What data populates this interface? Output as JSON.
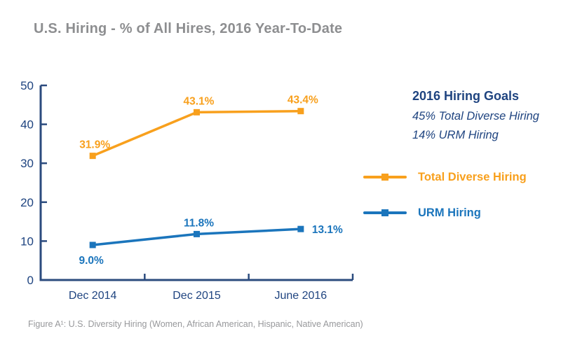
{
  "title": "U.S. Hiring - % of All Hires, 2016 Year-To-Date",
  "goals": {
    "heading": "2016 Hiring Goals",
    "lines": [
      "45% Total Diverse Hiring",
      "14% URM Hiring"
    ]
  },
  "legend": [
    {
      "label": "Total Diverse Hiring",
      "color": "#F8A01D"
    },
    {
      "label": "URM Hiring",
      "color": "#1B75BC"
    }
  ],
  "footer": "Figure A¹: U.S. Diversity Hiring (Women, African American, Hispanic, Native American)",
  "colors": {
    "title": "#8D8E90",
    "navy": "#1F4480",
    "axis": "#2B4B7E",
    "orange": "#F8A01D",
    "blue": "#1B75BC",
    "footer": "#97989B",
    "background": "#FFFFFF"
  },
  "chart_data": {
    "type": "line",
    "title": "U.S. Hiring - % of All Hires, 2016 Year-To-Date",
    "categories": [
      "Dec 2014",
      "Dec 2015",
      "June 2016"
    ],
    "series": [
      {
        "name": "Total Diverse Hiring",
        "values": [
          31.9,
          43.1,
          43.4
        ],
        "labels": [
          "31.9%",
          "43.1%",
          "43.4%"
        ],
        "color": "#F8A01D",
        "label_pos": [
          "above",
          "above",
          "above"
        ]
      },
      {
        "name": "URM Hiring",
        "values": [
          9.0,
          11.8,
          13.1
        ],
        "labels": [
          "9.0%",
          "11.8%",
          "13.1%"
        ],
        "color": "#1B75BC",
        "label_pos": [
          "below",
          "above",
          "right"
        ]
      }
    ],
    "xlabel": "",
    "ylabel": "",
    "ylim": [
      0,
      50
    ],
    "yticks": [
      0,
      10,
      20,
      30,
      40,
      50
    ],
    "grid": false,
    "legend_position": "right",
    "marker": "square",
    "annotations": [
      "2016 Hiring Goals",
      "45% Total Diverse Hiring",
      "14% URM Hiring"
    ]
  }
}
